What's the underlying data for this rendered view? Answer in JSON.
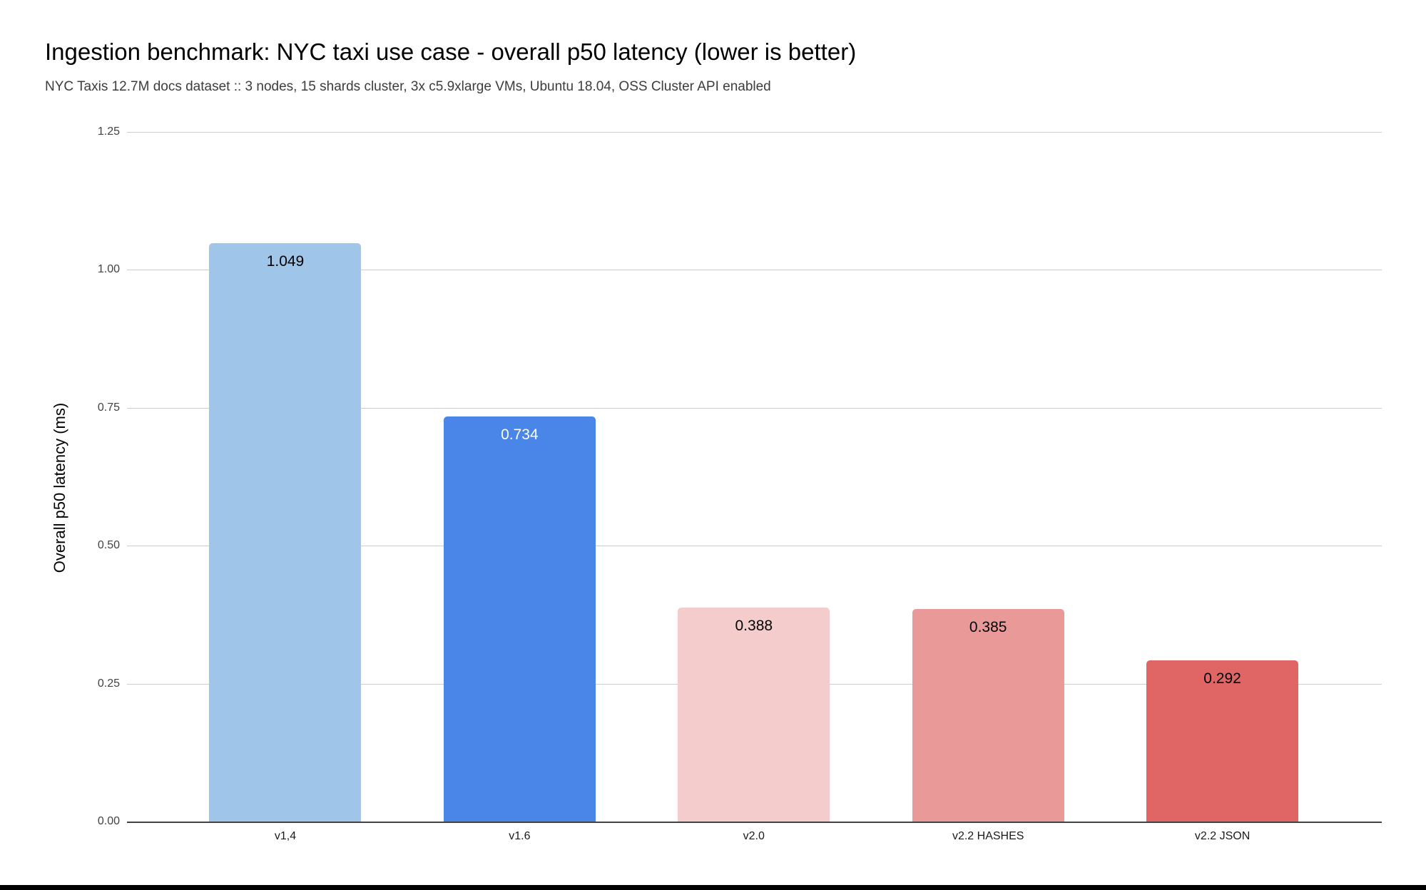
{
  "page": {
    "background": "#ffffff",
    "bottom_bar_color": "#000000"
  },
  "chart_data": {
    "type": "bar",
    "title": "Ingestion benchmark: NYC taxi use case - overall p50 latency (lower is better)",
    "subtitle": "NYC Taxis 12.7M docs dataset :: 3 nodes, 15 shards cluster, 3x c5.9xlarge VMs, Ubuntu 18.04, OSS Cluster API enabled",
    "ylabel": "Overall p50 latency (ms)",
    "xlabel": "",
    "categories": [
      "v1,4",
      "v1.6",
      "v2.0",
      "v2.2 HASHES",
      "v2.2 JSON"
    ],
    "values": [
      1.049,
      0.734,
      0.388,
      0.385,
      0.292
    ],
    "value_labels": [
      "1.049",
      "0.734",
      "0.388",
      "0.385",
      "0.292"
    ],
    "bar_colors": [
      "#9fc5e8",
      "#4a86e8",
      "#f4cccc",
      "#ea9999",
      "#e06666"
    ],
    "value_label_colors": [
      "#000000",
      "#ffffff",
      "#000000",
      "#000000",
      "#000000"
    ],
    "ylim": [
      0,
      1.25
    ],
    "yticks": [
      "1.25",
      "1.00",
      "0.75",
      "0.50",
      "0.25",
      "0.00"
    ],
    "grid": true,
    "legend": "none",
    "gridline_color": "#cccccc",
    "axis_line_color": "#424242",
    "tick_label_color": "#424242",
    "category_label_color": "#1a1a1a"
  }
}
